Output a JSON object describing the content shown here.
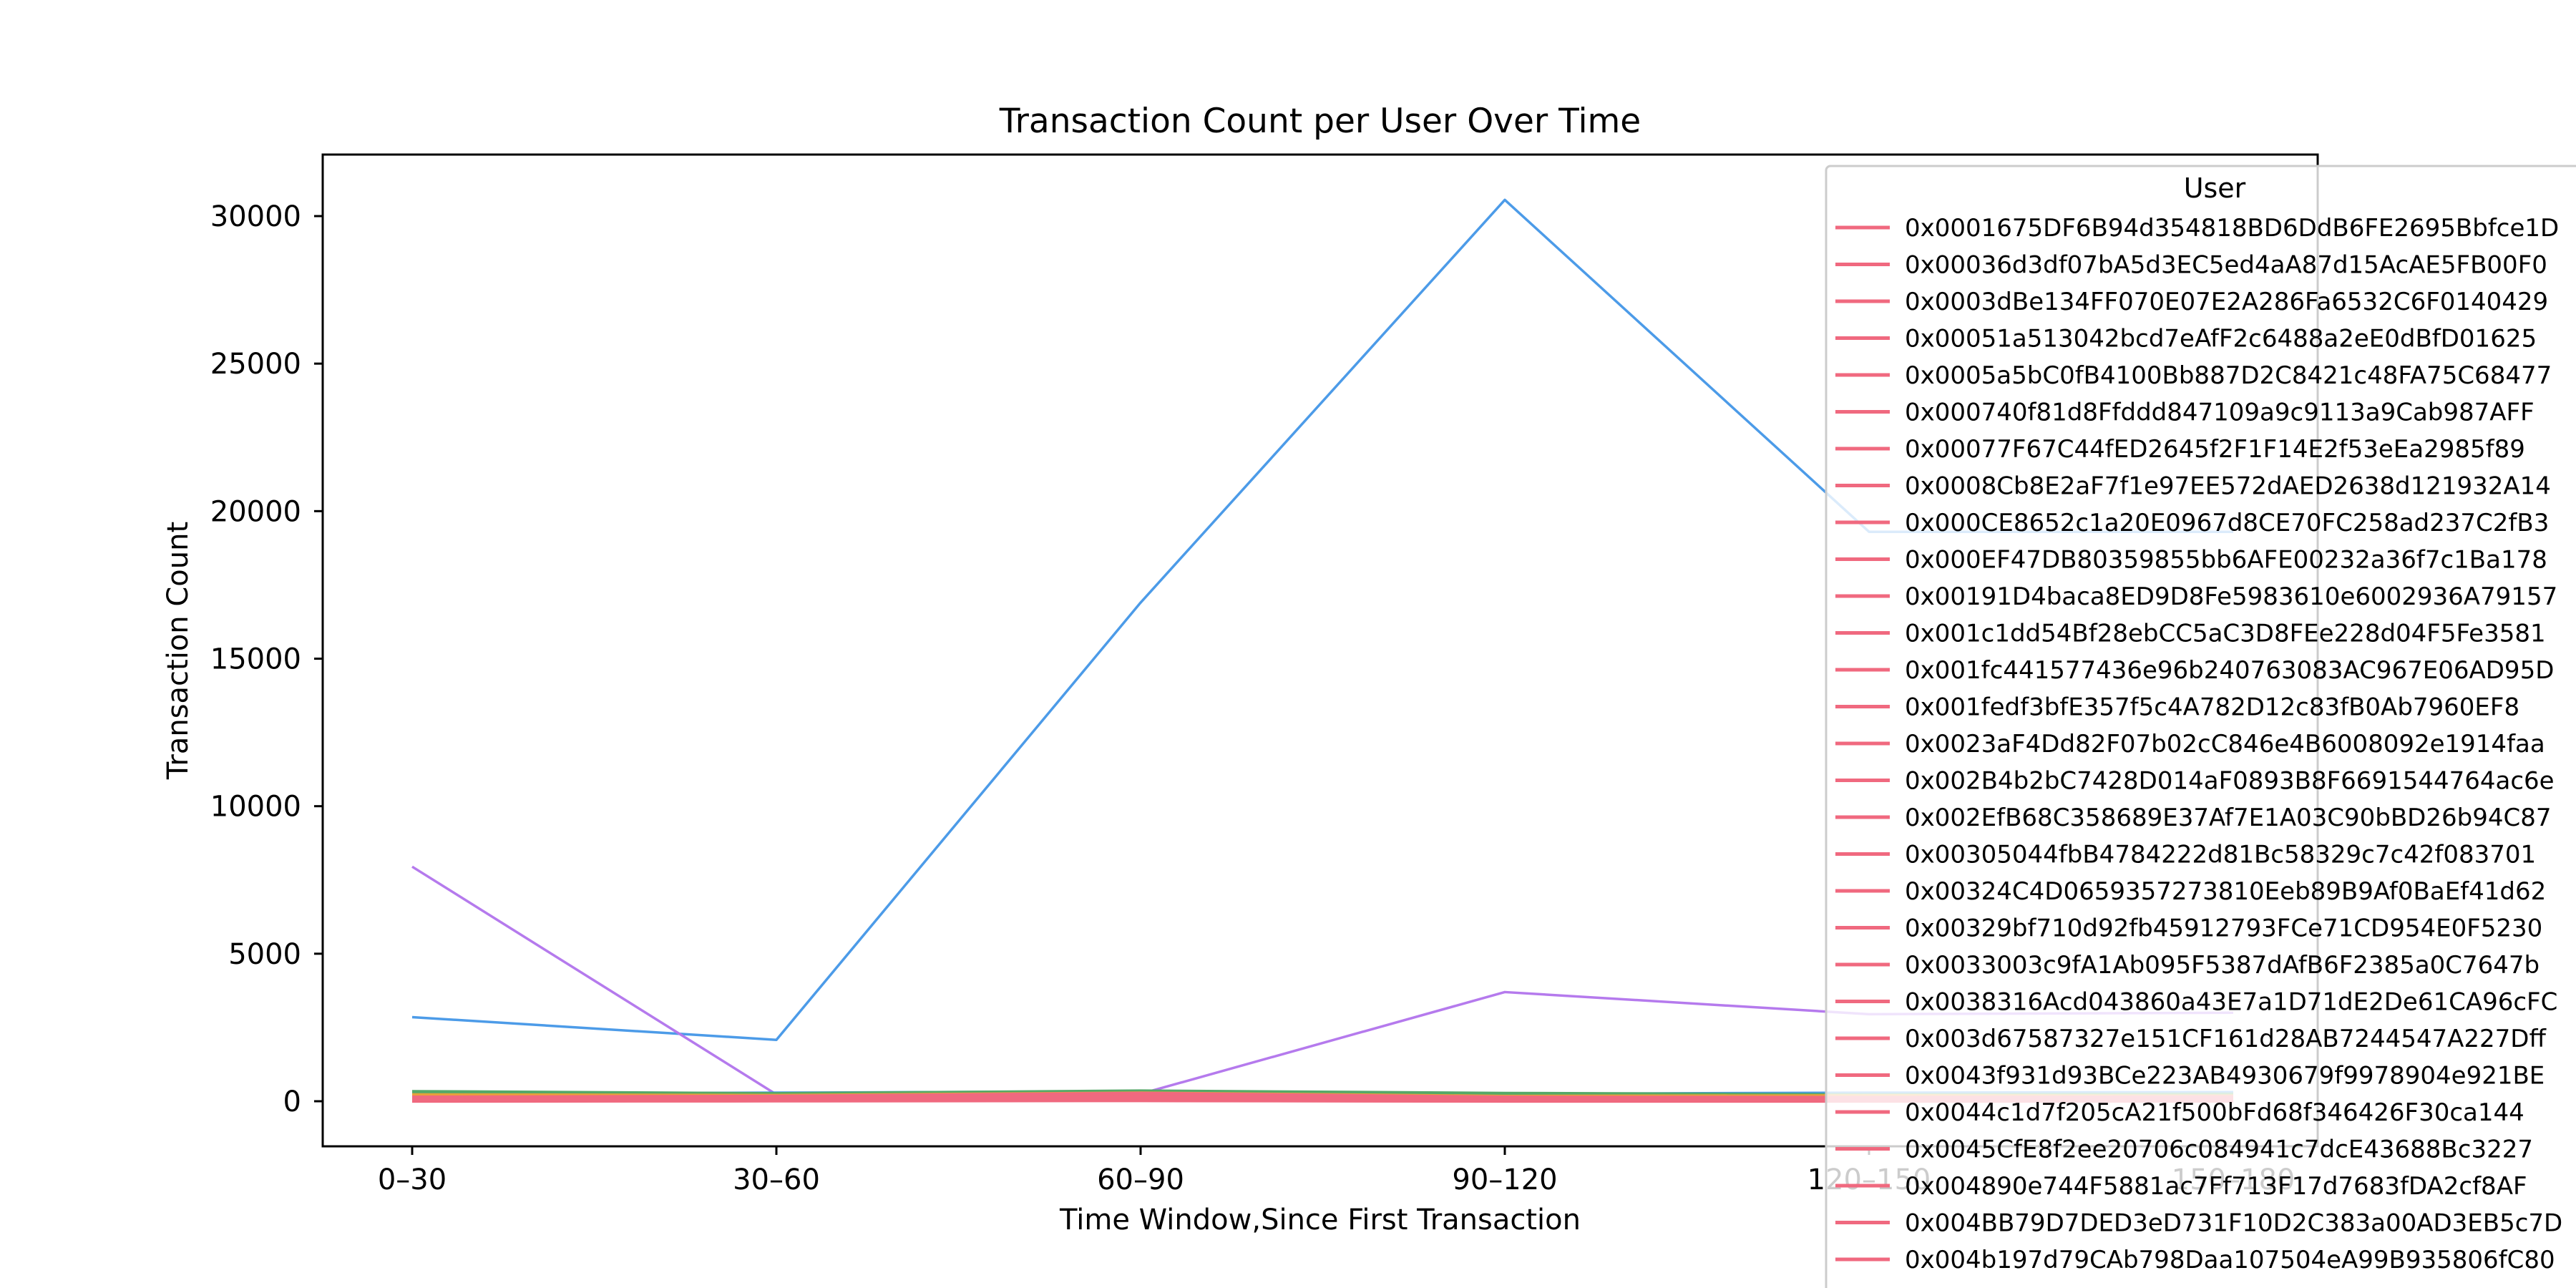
{
  "chart_data": {
    "type": "line",
    "title": "Transaction Count per User Over Time",
    "xlabel": "Time Window,Since First Transaction",
    "ylabel": "Transaction Count",
    "categories": [
      "0–30",
      "30–60",
      "60–90",
      "90–120",
      "120–150",
      "150–180"
    ],
    "ylim": [
      -1500,
      32000
    ],
    "yticks": [
      0,
      5000,
      10000,
      15000,
      20000,
      25000,
      30000
    ],
    "grid": false,
    "legend": {
      "title": "User",
      "placement": "right (overflowing)",
      "color": "#f0697f",
      "entries": [
        "0x0001675DF6B94d354818BD6DdB6FE2695Bbfce1D",
        "0x00036d3df07bA5d3EC5ed4aA87d15AcAE5FB00F0",
        "0x0003dBe134FF070E07E2A286Fa6532C6F0140429",
        "0x00051a513042bcd7eAfF2c6488a2eE0dBfD01625",
        "0x0005a5bC0fB4100Bb887D2C8421c48FA75C68477",
        "0x000740f81d8Ffddd847109a9c9113a9Cab987AFF",
        "0x00077F67C44fED2645f2F1F14E2f53eEa2985f89",
        "0x0008Cb8E2aF7f1e97EE572dAED2638d121932A14",
        "0x000CE8652c1a20E0967d8CE70FC258ad237C2fB3",
        "0x000EF47DB80359855bb6AFE00232a36f7c1Ba178",
        "0x00191D4baca8ED9D8Fe5983610e6002936A79157",
        "0x001c1dd54Bf28ebCC5aC3D8FEe228d04F5Fe3581",
        "0x001fc441577436e96b240763083AC967E06AD95D",
        "0x001fedf3bfE357f5c4A782D12c83fB0Ab7960EF8",
        "0x0023aF4Dd82F07b02cC846e4B6008092e1914faa",
        "0x002B4b2bC7428D014aF0893B8F6691544764ac6e",
        "0x002EfB68C358689E37Af7E1A03C90bBD26b94C87",
        "0x00305044fbB4784222d81Bc58329c7c42f083701",
        "0x00324C4D0659357273810Eeb89B9Af0BaEf41d62",
        "0x00329bf710d92fb45912793FCe71CD954E0F5230",
        "0x0033003c9fA1Ab095F5387dAfB6F2385a0C7647b",
        "0x0038316Acd043860a43E7a1D71dE2De61CA96cFC",
        "0x003d67587327e151CF161d28AB7244547A227Dff",
        "0x0043f931d93BCe223AB4930679f9978904e921BE",
        "0x0044c1d7f205cA21f500bFd68f346426F30ca144",
        "0x0045CfE8f2ee20706c084941c7dcE43688Bc3227",
        "0x004890e744F5881ac7Ff713F17d7683fDA2cf8AF",
        "0x004BB79D7DED3eD731F10D2C383a00AD3EB5c7D",
        "0x004b197d79CAb798Daa107504eA99B935806fC80"
      ]
    },
    "series": [
      {
        "color": "#4c9be8",
        "values": [
          2850,
          2080,
          16900,
          30550,
          19300,
          19300
        ]
      },
      {
        "color": "#b57aed",
        "values": [
          7950,
          230,
          250,
          3700,
          2950,
          3000
        ]
      },
      {
        "color": "#4c9be8",
        "values": [
          230,
          260,
          300,
          220,
          260,
          280
        ]
      },
      {
        "color": "#55a868",
        "values": [
          310,
          240,
          330,
          250,
          200,
          220
        ]
      },
      {
        "color": "#e8a03a",
        "values": [
          200,
          180,
          260,
          150,
          170,
          160
        ]
      },
      {
        "color": "#f0697f",
        "values": [
          120,
          150,
          250,
          120,
          110,
          130
        ]
      },
      {
        "color": "#f0697f",
        "values": [
          60,
          80,
          120,
          60,
          50,
          60
        ]
      },
      {
        "color": "#f0697f",
        "values": [
          20,
          30,
          40,
          20,
          20,
          25
        ]
      }
    ]
  }
}
